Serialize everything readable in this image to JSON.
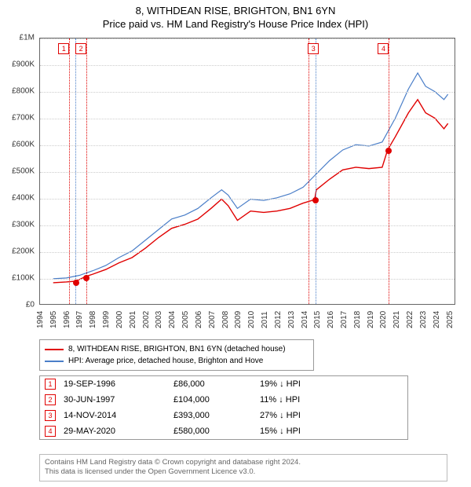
{
  "title": {
    "line1": "8, WITHDEAN RISE, BRIGHTON, BN1 6YN",
    "line2": "Price paid vs. HM Land Registry's House Price Index (HPI)"
  },
  "chart": {
    "type": "line",
    "background_color": "#ffffff",
    "grid_color": "#cccccc",
    "border_color": "#666666",
    "x_years": [
      1994,
      1995,
      1996,
      1997,
      1998,
      1999,
      2000,
      2001,
      2002,
      2003,
      2004,
      2005,
      2006,
      2007,
      2008,
      2009,
      2010,
      2011,
      2012,
      2013,
      2014,
      2015,
      2016,
      2017,
      2018,
      2019,
      2020,
      2021,
      2022,
      2023,
      2024,
      2025
    ],
    "xlim": [
      1994,
      2025.5
    ],
    "y_ticks": [
      "£0",
      "£100K",
      "£200K",
      "£300K",
      "£400K",
      "£500K",
      "£600K",
      "£700K",
      "£800K",
      "£900K",
      "£1M"
    ],
    "ylim": [
      0,
      1000000
    ],
    "label_fontsize": 10,
    "vlines": [
      {
        "x": 1996.2,
        "color": "#e00000"
      },
      {
        "x": 1996.7,
        "color": "#4a7ec8"
      },
      {
        "x": 1997.5,
        "color": "#e00000"
      },
      {
        "x": 2014.3,
        "color": "#e00000"
      },
      {
        "x": 2014.87,
        "color": "#4a7ec8"
      },
      {
        "x": 2020.4,
        "color": "#e00000"
      }
    ],
    "markers": [
      {
        "n": "1",
        "x": 1995.8
      },
      {
        "n": "2",
        "x": 1997.1
      },
      {
        "n": "3",
        "x": 2014.7
      },
      {
        "n": "4",
        "x": 2020.0
      }
    ],
    "sale_points": [
      {
        "x": 1996.72,
        "y": 86000
      },
      {
        "x": 1997.5,
        "y": 104000
      },
      {
        "x": 2014.87,
        "y": 393000
      },
      {
        "x": 2020.41,
        "y": 580000
      }
    ],
    "series": [
      {
        "name": "property",
        "color": "#e00000",
        "width": 1.4,
        "points": [
          [
            1995,
            80000
          ],
          [
            1996,
            83000
          ],
          [
            1996.72,
            86000
          ],
          [
            1997.5,
            104000
          ],
          [
            1998,
            112000
          ],
          [
            1999,
            130000
          ],
          [
            2000,
            155000
          ],
          [
            2001,
            175000
          ],
          [
            2002,
            210000
          ],
          [
            2003,
            250000
          ],
          [
            2004,
            285000
          ],
          [
            2005,
            300000
          ],
          [
            2006,
            320000
          ],
          [
            2007,
            360000
          ],
          [
            2007.8,
            395000
          ],
          [
            2008.3,
            370000
          ],
          [
            2009,
            315000
          ],
          [
            2010,
            350000
          ],
          [
            2011,
            345000
          ],
          [
            2012,
            350000
          ],
          [
            2013,
            360000
          ],
          [
            2014,
            380000
          ],
          [
            2014.87,
            393000
          ],
          [
            2015,
            430000
          ],
          [
            2016,
            470000
          ],
          [
            2017,
            505000
          ],
          [
            2018,
            515000
          ],
          [
            2019,
            510000
          ],
          [
            2020,
            515000
          ],
          [
            2020.41,
            580000
          ],
          [
            2021,
            630000
          ],
          [
            2022,
            720000
          ],
          [
            2022.7,
            770000
          ],
          [
            2023.3,
            720000
          ],
          [
            2024,
            700000
          ],
          [
            2024.7,
            660000
          ],
          [
            2025,
            680000
          ]
        ]
      },
      {
        "name": "hpi",
        "color": "#4a7ec8",
        "width": 1.2,
        "points": [
          [
            1995,
            95000
          ],
          [
            1996,
            98000
          ],
          [
            1997,
            108000
          ],
          [
            1998,
            125000
          ],
          [
            1999,
            145000
          ],
          [
            2000,
            175000
          ],
          [
            2001,
            200000
          ],
          [
            2002,
            240000
          ],
          [
            2003,
            280000
          ],
          [
            2004,
            320000
          ],
          [
            2005,
            335000
          ],
          [
            2006,
            360000
          ],
          [
            2007,
            400000
          ],
          [
            2007.8,
            430000
          ],
          [
            2008.3,
            410000
          ],
          [
            2009,
            360000
          ],
          [
            2010,
            395000
          ],
          [
            2011,
            390000
          ],
          [
            2012,
            400000
          ],
          [
            2013,
            415000
          ],
          [
            2014,
            440000
          ],
          [
            2015,
            490000
          ],
          [
            2016,
            540000
          ],
          [
            2017,
            580000
          ],
          [
            2018,
            600000
          ],
          [
            2019,
            595000
          ],
          [
            2020,
            610000
          ],
          [
            2021,
            700000
          ],
          [
            2022,
            810000
          ],
          [
            2022.7,
            870000
          ],
          [
            2023.3,
            820000
          ],
          [
            2024,
            800000
          ],
          [
            2024.7,
            770000
          ],
          [
            2025,
            790000
          ]
        ]
      }
    ]
  },
  "legend": {
    "items": [
      {
        "color": "#e00000",
        "label": "8, WITHDEAN RISE, BRIGHTON, BN1 6YN (detached house)"
      },
      {
        "color": "#4a7ec8",
        "label": "HPI: Average price, detached house, Brighton and Hove"
      }
    ]
  },
  "sales": [
    {
      "n": "1",
      "date": "19-SEP-1996",
      "price": "£86,000",
      "delta": "19% ↓ HPI"
    },
    {
      "n": "2",
      "date": "30-JUN-1997",
      "price": "£104,000",
      "delta": "11% ↓ HPI"
    },
    {
      "n": "3",
      "date": "14-NOV-2014",
      "price": "£393,000",
      "delta": "27% ↓ HPI"
    },
    {
      "n": "4",
      "date": "29-MAY-2020",
      "price": "£580,000",
      "delta": "15% ↓ HPI"
    }
  ],
  "attribution": {
    "line1": "Contains HM Land Registry data © Crown copyright and database right 2024.",
    "line2": "This data is licensed under the Open Government Licence v3.0."
  }
}
